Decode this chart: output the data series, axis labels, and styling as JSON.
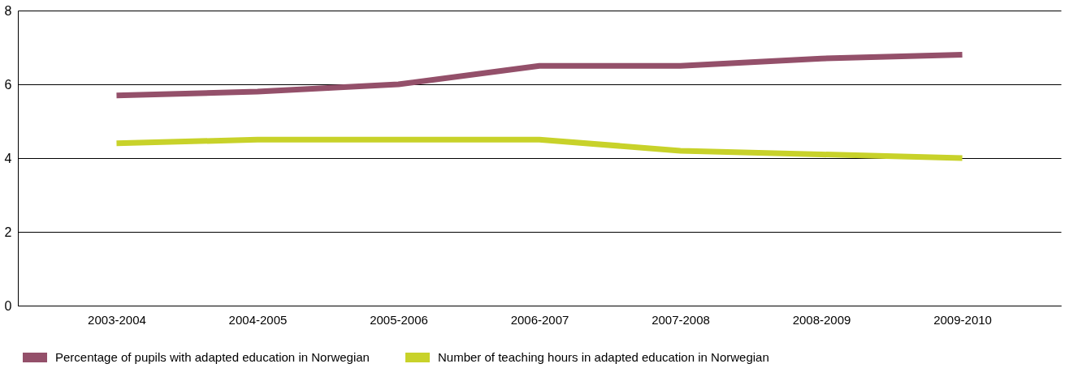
{
  "chart_data": {
    "type": "line",
    "categories": [
      "2003-2004",
      "2004-2005",
      "2005-2006",
      "2006-2007",
      "2007-2008",
      "2008-2009",
      "2009-2010"
    ],
    "series": [
      {
        "name": "Percentage of pupils with adapted education in Norwegian",
        "color": "#94506a",
        "values": [
          5.7,
          5.8,
          6.0,
          6.5,
          6.5,
          6.7,
          6.8
        ]
      },
      {
        "name": "Number of teaching hours in adapted education in Norwegian",
        "color": "#c8d22a",
        "values": [
          4.4,
          4.5,
          4.5,
          4.5,
          4.2,
          4.1,
          4.0
        ]
      }
    ],
    "ylim": [
      0,
      8
    ],
    "yticks": [
      0,
      2,
      4,
      6,
      8
    ],
    "grid": "y",
    "legend": "bottom",
    "marker": "none",
    "line_style": "solid"
  }
}
